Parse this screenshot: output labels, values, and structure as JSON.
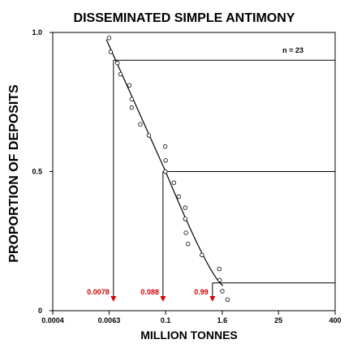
{
  "chart_data": {
    "type": "scatter",
    "title": "DISSEMINATED SIMPLE ANTIMONY",
    "xlabel": "MILLION TONNES",
    "ylabel": "PROPORTION OF DEPOSITS",
    "x_scale": "log",
    "xlim": [
      0.0004,
      400
    ],
    "ylim": [
      0,
      1
    ],
    "x_ticks": [
      {
        "value": 0.0004,
        "label": "0.0004"
      },
      {
        "value": 0.0063,
        "label": "0.0063"
      },
      {
        "value": 0.1,
        "label": "0.1"
      },
      {
        "value": 1.6,
        "label": "1.6"
      },
      {
        "value": 25,
        "label": "25"
      },
      {
        "value": 400,
        "label": "400"
      }
    ],
    "y_ticks": [
      {
        "value": 0,
        "label": "0"
      },
      {
        "value": 0.5,
        "label": "0.5"
      },
      {
        "value": 1,
        "label": "1.0"
      }
    ],
    "grid": false,
    "sample_label": "n = 23",
    "series": [
      {
        "marker": "open-circle",
        "points": [
          [
            0.0063,
            0.98
          ],
          [
            0.0068,
            0.93
          ],
          [
            0.0095,
            0.89
          ],
          [
            0.011,
            0.85
          ],
          [
            0.017,
            0.81
          ],
          [
            0.019,
            0.76
          ],
          [
            0.019,
            0.73
          ],
          [
            0.029,
            0.67
          ],
          [
            0.044,
            0.63
          ],
          [
            0.098,
            0.59
          ],
          [
            0.1,
            0.54
          ],
          [
            0.099,
            0.5
          ],
          [
            0.15,
            0.46
          ],
          [
            0.19,
            0.41
          ],
          [
            0.26,
            0.37
          ],
          [
            0.26,
            0.33
          ],
          [
            0.27,
            0.28
          ],
          [
            0.3,
            0.24
          ],
          [
            0.59,
            0.2
          ],
          [
            1.38,
            0.15
          ],
          [
            1.41,
            0.11
          ],
          [
            1.6,
            0.07
          ],
          [
            2.06,
            0.04
          ]
        ]
      },
      {
        "type": "line",
        "points": [
          [
            0.0055,
            0.975
          ],
          [
            0.1,
            0.5
          ],
          [
            0.8,
            0.13
          ],
          [
            1.65,
            0.09
          ]
        ]
      }
    ],
    "percentile_markers": [
      {
        "proportion": 0.9,
        "value": 0.0078,
        "label": "0.0078"
      },
      {
        "proportion": 0.5,
        "value": 0.088,
        "label": "0.088"
      },
      {
        "proportion": 0.1,
        "value": 0.99,
        "label": "0.99"
      }
    ],
    "colors": {
      "axis": "#000000",
      "marker_arrow": "#dd0000",
      "marker_label": "#cc0000"
    }
  }
}
